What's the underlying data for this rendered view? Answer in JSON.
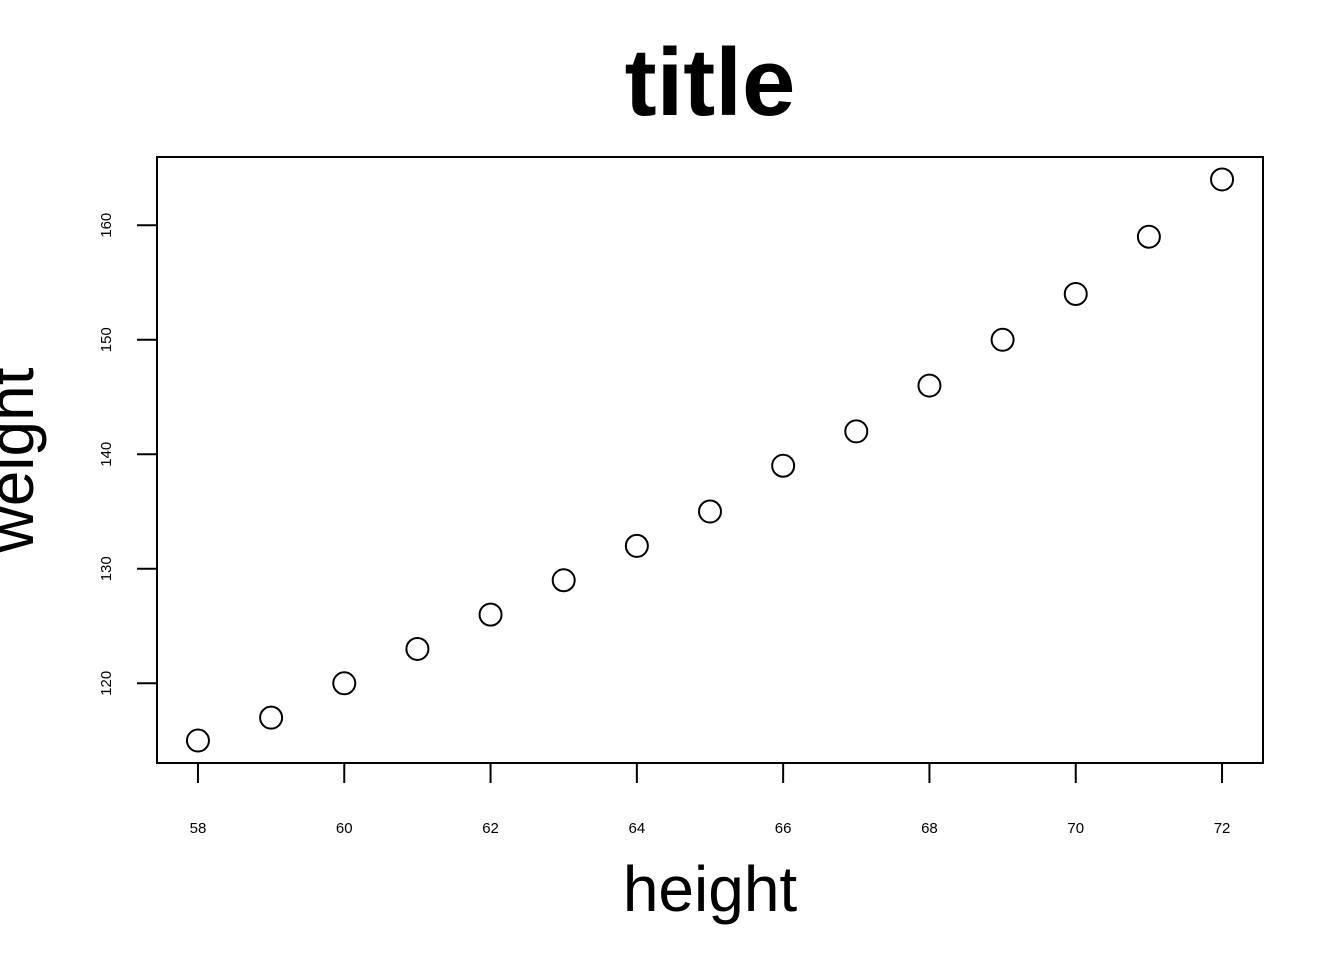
{
  "chart_data": {
    "type": "scatter",
    "title": "title",
    "xlabel": "height",
    "ylabel": "weight",
    "x": [
      58,
      59,
      60,
      61,
      62,
      63,
      64,
      65,
      66,
      67,
      68,
      69,
      70,
      71,
      72
    ],
    "y": [
      115,
      117,
      120,
      123,
      126,
      129,
      132,
      135,
      139,
      142,
      146,
      150,
      154,
      159,
      164
    ],
    "xlim": [
      57.44,
      72.56
    ],
    "ylim": [
      113.04,
      165.96
    ],
    "xticks": [
      58,
      60,
      62,
      64,
      66,
      68,
      70,
      72
    ],
    "yticks": [
      120,
      130,
      140,
      150,
      160
    ],
    "grid": false,
    "marker": "open-circle",
    "colors": {
      "marker": "#000000",
      "axes": "#000000",
      "background": "#ffffff"
    }
  }
}
